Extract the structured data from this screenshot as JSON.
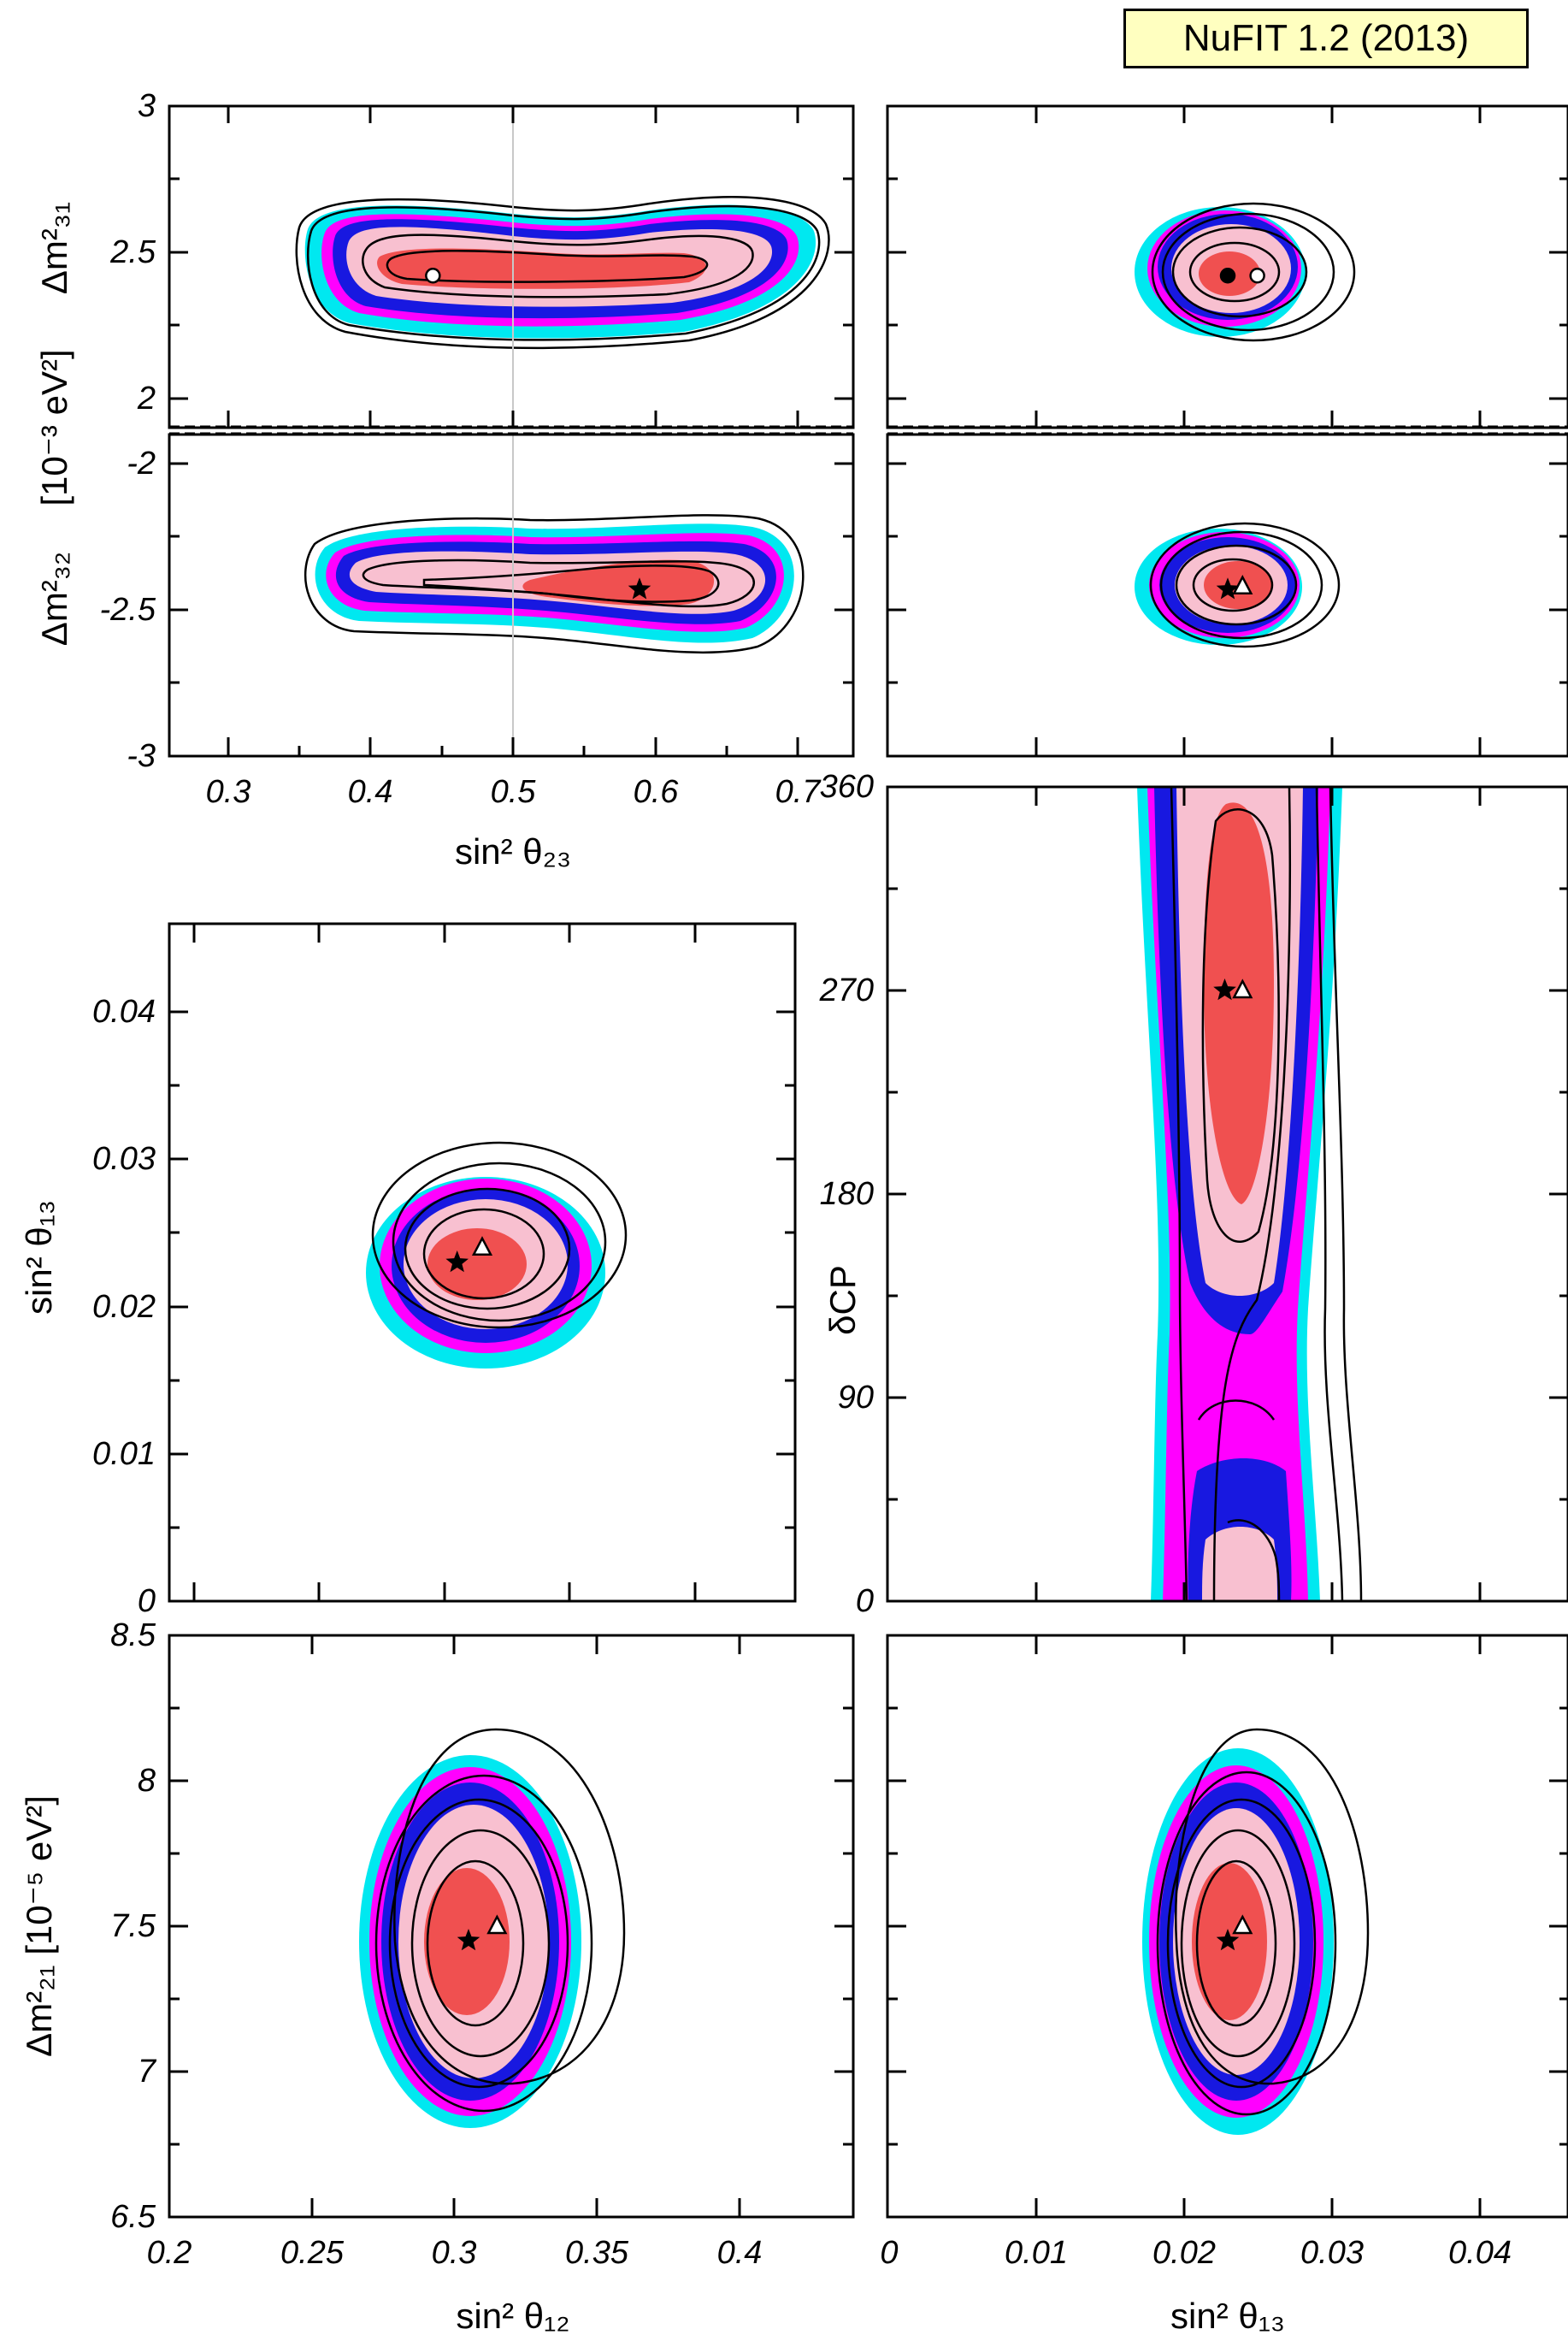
{
  "badge": "NuFIT 1.2 (2013)",
  "colors": {
    "sigma1_fill": "#f05050",
    "sigma2_fill": "#f8c0d0",
    "sigma3_fill": "#1818e0",
    "sigma4_fill": "#ff00ff",
    "sigma5_fill": "#00e8f0",
    "line": "#000000",
    "frame": "#000000"
  },
  "chart_data": [
    {
      "id": "p1",
      "type": "contour",
      "xlim": [
        0.26,
        0.74
      ],
      "ylim": [
        1.9,
        3.0
      ],
      "xticks": [
        "0.3",
        "0.4",
        "0.5",
        "0.6",
        "0.7"
      ],
      "yticks": [
        "2",
        "2.5",
        "3"
      ],
      "ylabel": "Δm²₃₁",
      "vline_x": 0.5,
      "markers": [
        {
          "x": 0.445,
          "y": 2.42,
          "symbol": "circle-open"
        }
      ]
    },
    {
      "id": "p2",
      "type": "contour",
      "xlim": [
        0,
        0.046
      ],
      "ylim": [
        1.9,
        3.0
      ],
      "markers": [
        {
          "x": 0.023,
          "y": 2.42,
          "symbol": "circle-filled"
        },
        {
          "x": 0.025,
          "y": 2.42,
          "symbol": "circle-open"
        }
      ]
    },
    {
      "id": "p3",
      "type": "contour",
      "xlim": [
        0.26,
        0.74
      ],
      "ylim": [
        -3.0,
        -1.9
      ],
      "xticks": [
        "0.3",
        "0.4",
        "0.5",
        "0.6",
        "0.7"
      ],
      "yticks": [
        "-2",
        "-2.5",
        "-3"
      ],
      "xlabel": "sin² θ₂₃",
      "ylabel": "Δm²₃₂",
      "shared_ylabel": "[10⁻³ eV²]",
      "vline_x": 0.5,
      "markers": [
        {
          "x": 0.59,
          "y": -2.43,
          "symbol": "star"
        }
      ]
    },
    {
      "id": "p4",
      "type": "contour",
      "xlim": [
        0,
        0.046
      ],
      "ylim": [
        -3.0,
        -1.9
      ],
      "markers": [
        {
          "x": 0.023,
          "y": -2.43,
          "symbol": "star"
        },
        {
          "x": 0.024,
          "y": -2.42,
          "symbol": "triangle-open"
        }
      ]
    },
    {
      "id": "p5",
      "type": "contour",
      "xlim": [
        0.19,
        0.44
      ],
      "ylim": [
        0,
        0.046
      ],
      "yticks": [
        "0",
        "0.01",
        "0.02",
        "0.03",
        "0.04"
      ],
      "ylabel": "sin² θ₁₃",
      "markers": [
        {
          "x": 0.305,
          "y": 0.023,
          "symbol": "star"
        },
        {
          "x": 0.315,
          "y": 0.024,
          "symbol": "triangle-open"
        }
      ]
    },
    {
      "id": "p6",
      "type": "contour",
      "xlim": [
        0,
        0.046
      ],
      "ylim": [
        0,
        360
      ],
      "yticks": [
        "0",
        "90",
        "180",
        "270",
        "360"
      ],
      "ylabel": "δCP",
      "markers": [
        {
          "x": 0.0228,
          "y": 270,
          "symbol": "star"
        },
        {
          "x": 0.024,
          "y": 270,
          "symbol": "triangle-open"
        }
      ]
    },
    {
      "id": "p7",
      "type": "contour",
      "xlim": [
        0.2,
        0.44
      ],
      "ylim": [
        6.5,
        8.5
      ],
      "xticks": [
        "0.2",
        "0.25",
        "0.3",
        "0.35",
        "0.4"
      ],
      "yticks": [
        "6.5",
        "7",
        "7.5",
        "8",
        "8.5"
      ],
      "xlabel": "sin² θ₁₂",
      "ylabel": "Δm²₂₁ [10⁻⁵ eV²]",
      "markers": [
        {
          "x": 0.305,
          "y": 7.45,
          "symbol": "star"
        },
        {
          "x": 0.315,
          "y": 7.5,
          "symbol": "triangle-open"
        }
      ]
    },
    {
      "id": "p8",
      "type": "contour",
      "xlim": [
        0,
        0.046
      ],
      "ylim": [
        6.5,
        8.5
      ],
      "xticks": [
        "0",
        "0.01",
        "0.02",
        "0.03",
        "0.04"
      ],
      "xlabel": "sin² θ₁₃",
      "markers": [
        {
          "x": 0.023,
          "y": 7.45,
          "symbol": "star"
        },
        {
          "x": 0.024,
          "y": 7.5,
          "symbol": "triangle-open"
        }
      ]
    }
  ]
}
